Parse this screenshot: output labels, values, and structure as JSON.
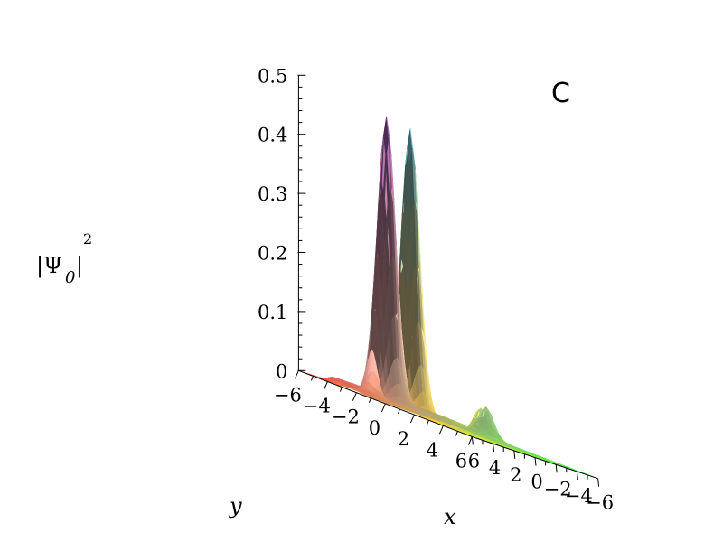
{
  "chart_data": {
    "type": "surface3d",
    "panel_label": "C",
    "title": "",
    "zlabel": {
      "base": "|Ψ",
      "subscript": "0",
      "close": "|",
      "superscript": "2"
    },
    "xlabel": "x",
    "ylabel": "y",
    "xlim": [
      -6,
      6
    ],
    "ylim": [
      -6,
      6
    ],
    "zlim": [
      0,
      0.5
    ],
    "x_ticks": [
      6,
      4,
      2,
      0,
      -2,
      -4,
      -6
    ],
    "x_tick_labels": [
      "6",
      "4",
      "2",
      "0",
      "−2",
      "−4",
      "−6"
    ],
    "y_ticks": [
      -6,
      -4,
      -2,
      0,
      2,
      4,
      6
    ],
    "y_tick_labels": [
      "−6",
      "−4",
      "−2",
      "0",
      "2",
      "4",
      "6"
    ],
    "z_ticks": [
      0,
      0.1,
      0.2,
      0.3,
      0.4,
      0.5
    ],
    "z_tick_labels": [
      "0",
      "0.1",
      "0.2",
      "0.3",
      "0.4",
      "0.5"
    ],
    "peaks": [
      {
        "x": -1,
        "y": -5,
        "z": 0.48
      },
      {
        "x": 5,
        "y": 1,
        "z": 0.48
      }
    ],
    "secondary_bumps": [
      {
        "x": 1,
        "y": 3,
        "z": 0.05
      },
      {
        "x": -5,
        "y": -1,
        "z": 0.05
      }
    ],
    "colors": {
      "corner_x6_y_neg6": "#ff4040",
      "corner_x6_y6": "#ffff40",
      "corner_x_neg6_y6": "#40ff40",
      "corner_x_neg6_y_neg6": "#b4a888",
      "peak_left_top": "#8a4fa6",
      "peak_right_top": "#5ab8cc"
    }
  }
}
